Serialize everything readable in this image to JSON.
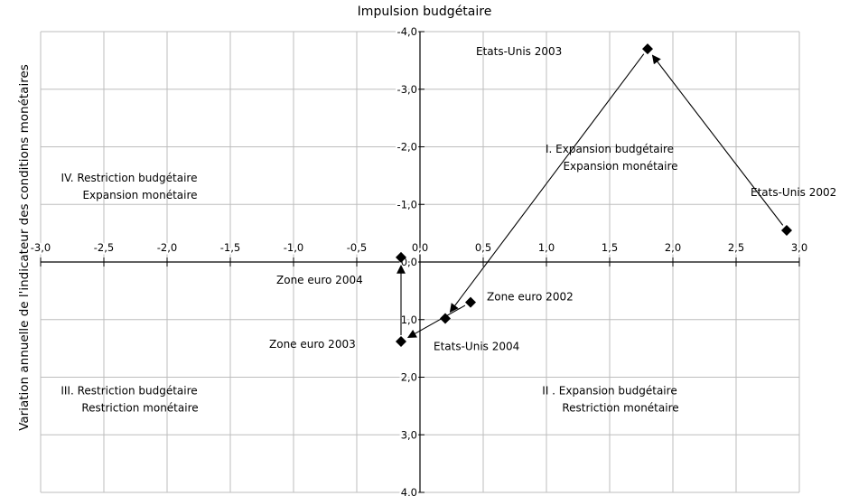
{
  "chart_data": {
    "type": "scatter",
    "title": "Impulsion budgétaire",
    "ylabel": "Variation annuelle de l'indicateur des conditions monétaires",
    "xlabel": "",
    "xlim": [
      -3.0,
      3.0
    ],
    "ylim": [
      -4.0,
      4.0
    ],
    "y_axis_inverted": true,
    "grid": true,
    "x_ticks": [
      {
        "v": -3.0,
        "label": "-3,0"
      },
      {
        "v": -2.5,
        "label": "-2,5"
      },
      {
        "v": -2.0,
        "label": "-2,0"
      },
      {
        "v": -1.5,
        "label": "-1,5"
      },
      {
        "v": -1.0,
        "label": "-1,0"
      },
      {
        "v": -0.5,
        "label": "-0,5"
      },
      {
        "v": 0.0,
        "label": "0,0"
      },
      {
        "v": 0.5,
        "label": "0,5"
      },
      {
        "v": 1.0,
        "label": "1,0"
      },
      {
        "v": 1.5,
        "label": "1,5"
      },
      {
        "v": 2.0,
        "label": "2,0"
      },
      {
        "v": 2.5,
        "label": "2,5"
      },
      {
        "v": 3.0,
        "label": "3,0"
      }
    ],
    "y_ticks": [
      {
        "v": -4.0,
        "label": "-4,0"
      },
      {
        "v": -3.0,
        "label": "-3,0"
      },
      {
        "v": -2.0,
        "label": "-2,0"
      },
      {
        "v": -1.0,
        "label": "-1,0"
      },
      {
        "v": 0.0,
        "label": "0,0"
      },
      {
        "v": 1.0,
        "label": "1,0"
      },
      {
        "v": 2.0,
        "label": "2,0"
      },
      {
        "v": 3.0,
        "label": "3,0"
      },
      {
        "v": 4.0,
        "label": "4,0"
      }
    ],
    "series": [
      {
        "points": [
          {
            "label": "Etats-Unis 2002",
            "x": 2.9,
            "y": -0.55
          },
          {
            "label": "Etats-Unis 2003",
            "x": 1.8,
            "y": -3.7
          },
          {
            "label": "Etats-Unis 2004",
            "x": 0.2,
            "y": 0.98
          }
        ]
      },
      {
        "points": [
          {
            "label": "Zone euro 2002",
            "x": 0.4,
            "y": 0.7
          },
          {
            "label": "Zone euro 2003",
            "x": -0.15,
            "y": 1.38
          },
          {
            "label": "Zone euro 2004",
            "x": -0.15,
            "y": -0.08
          }
        ]
      }
    ],
    "arrows": [
      {
        "from": "Etats-Unis 2002",
        "to": "Etats-Unis 2003"
      },
      {
        "from": "Etats-Unis 2003",
        "to": "Etats-Unis 2004"
      },
      {
        "from": "Zone euro 2002",
        "to": "Zone euro 2003"
      },
      {
        "from": "Zone euro 2003",
        "to": "Zone euro 2004"
      }
    ],
    "quadrants": [
      {
        "lines": [
          "I. Expansion budgétaire",
          "Expansion monétaire"
        ]
      },
      {
        "lines": [
          "II . Expansion budgétaire",
          "Restriction monétaire"
        ]
      },
      {
        "lines": [
          "III. Restriction budgétaire",
          "Restriction monétaire"
        ]
      },
      {
        "lines": [
          "IV. Restriction budgétaire",
          "Expansion monétaire"
        ]
      }
    ]
  }
}
